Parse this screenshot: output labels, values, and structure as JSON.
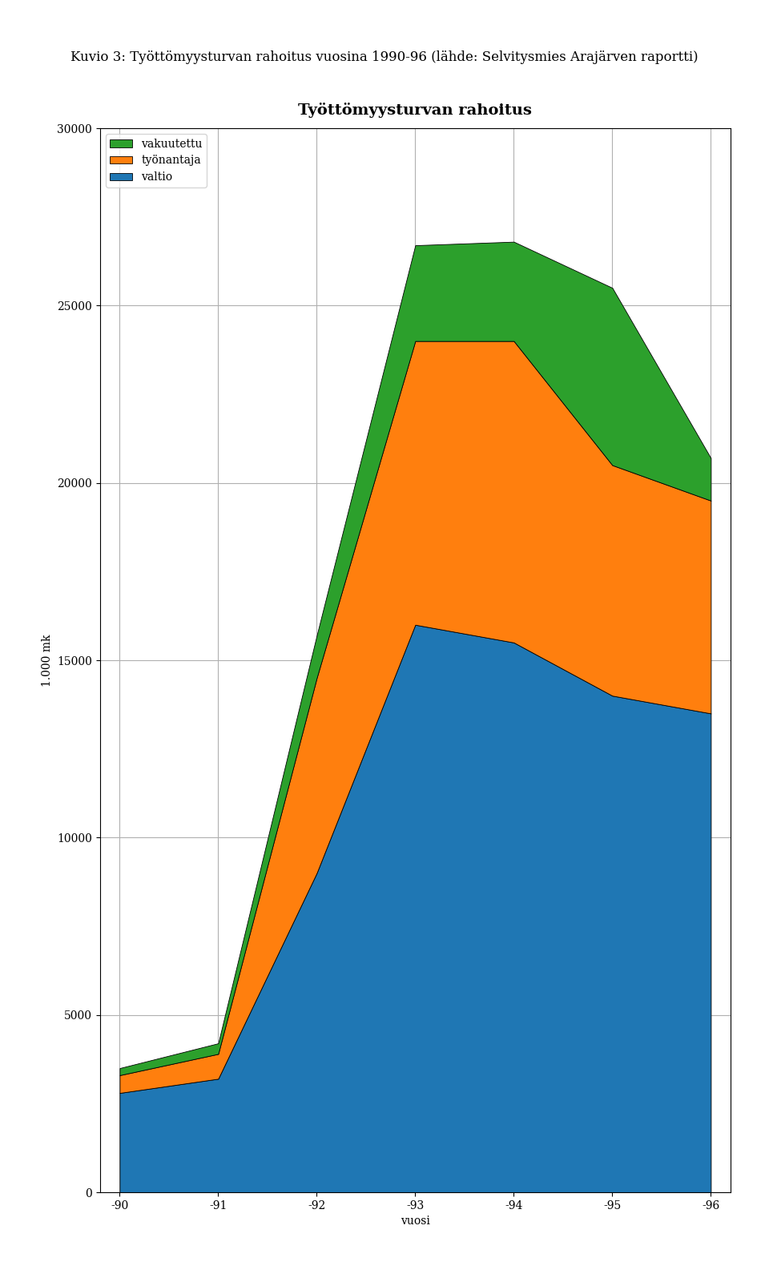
{
  "chart_data": {
    "type": "area",
    "stacked": true,
    "title": "Työttömyysturvan rahoitus",
    "subtitle": "Kuvio 3: Työttömyysturvan rahoitus vuosina 1990-96 (lähde: Selvitysmies Arajärven raportti)",
    "x_label": "vuosi",
    "y_label": "1.000 mk",
    "categories": [
      "-90",
      "-91",
      "-92",
      "-93",
      "-94",
      "-95",
      "-96"
    ],
    "series": [
      {
        "name": "valtio",
        "values": [
          2800,
          3200,
          9000,
          16000,
          15500,
          14000,
          13500
        ]
      },
      {
        "name": "työnantaja",
        "values": [
          500,
          700,
          5500,
          8000,
          8500,
          6500,
          6000
        ]
      },
      {
        "name": "vakuutettu",
        "values": [
          200,
          300,
          1200,
          2700,
          2800,
          5000,
          1200
        ]
      }
    ],
    "ylim": [
      0,
      30000
    ],
    "yticks": [
      0,
      5000,
      10000,
      15000,
      20000,
      25000,
      30000
    ],
    "grid": true,
    "legend": "upper left"
  }
}
